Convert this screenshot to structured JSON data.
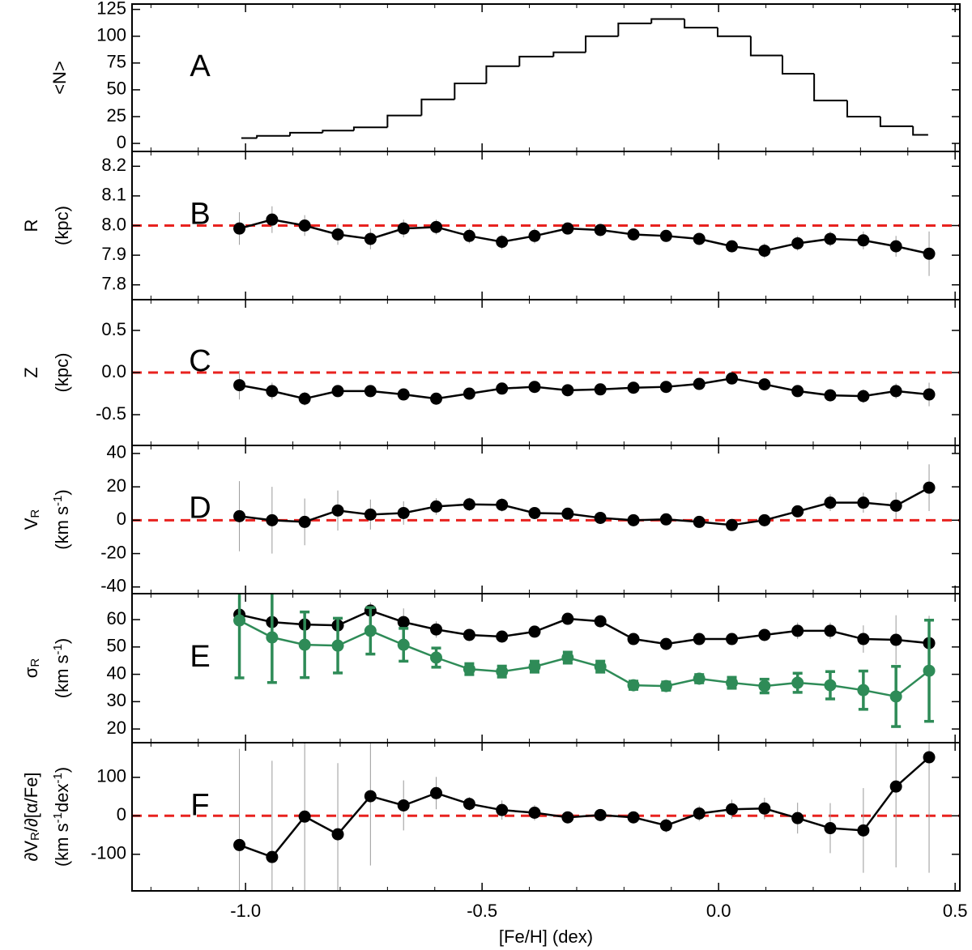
{
  "x_axis": {
    "xlabel": "[Fe/H] (dex)",
    "xlim": [
      -1.24,
      0.51
    ],
    "xticks": [
      {
        "value": -1,
        "label": "-1.0"
      },
      -0.5,
      {
        "value": 0,
        "label": "0.0"
      },
      0.5
    ],
    "xminorticks": [
      -1.2,
      -1.1,
      -0.9,
      -0.8,
      -0.7,
      -0.6,
      -0.4,
      -0.3,
      -0.2,
      -0.1,
      0.1,
      0.2,
      0.3,
      0.4
    ]
  },
  "chart_data": [
    {
      "type": "histogram",
      "panel_label": "A",
      "ylabel": [
        [
          {
            "t": "<N>"
          }
        ]
      ],
      "ylim": [
        -7.5,
        130
      ],
      "yticks": [
        0,
        25,
        50,
        75,
        100,
        125
      ],
      "color": "#000000",
      "bins": [
        -1.009,
        -0.976,
        -0.906,
        -0.837,
        -0.771,
        -0.7,
        -0.628,
        -0.558,
        -0.491,
        -0.421,
        -0.349,
        -0.281,
        -0.212,
        -0.142,
        -0.072,
        -0.002,
        0.068,
        0.135,
        0.202,
        0.272,
        0.342,
        0.411,
        0.443
      ],
      "values": [
        5,
        7,
        10,
        12,
        15,
        26,
        41,
        56,
        72,
        81,
        85,
        100,
        112,
        116,
        108,
        100,
        82,
        65,
        40,
        25,
        16,
        8
      ]
    },
    {
      "type": "line",
      "panel_label": "B",
      "ylabel": [
        [
          {
            "t": "R"
          }
        ],
        [
          {
            "t": "(kpc)"
          }
        ]
      ],
      "ylim": [
        7.75,
        8.25
      ],
      "yticks": [
        7.8,
        7.9,
        {
          "value": 8,
          "label": "8.0"
        },
        8.1,
        8.2
      ],
      "hline": 8.0,
      "hline_color": "#e8221f",
      "x": [
        -1.013,
        -0.944,
        -0.875,
        -0.805,
        -0.736,
        -0.666,
        -0.597,
        -0.527,
        -0.458,
        -0.389,
        -0.319,
        -0.25,
        -0.18,
        -0.111,
        -0.041,
        0.028,
        0.097,
        0.167,
        0.236,
        0.306,
        0.375,
        0.445
      ],
      "series": [
        {
          "color": "#000000",
          "error_color": "#999999",
          "error_width": 1,
          "values": [
            7.99,
            8.02,
            8.0,
            7.97,
            7.955,
            7.99,
            7.995,
            7.965,
            7.945,
            7.965,
            7.99,
            7.985,
            7.97,
            7.965,
            7.955,
            7.93,
            7.915,
            7.94,
            7.955,
            7.95,
            7.93,
            7.905
          ],
          "errors": [
            0.055,
            0.045,
            0.035,
            0.035,
            0.035,
            0.03,
            0.025,
            0.025,
            0.025,
            0.025,
            0.02,
            0.02,
            0.02,
            0.02,
            0.02,
            0.02,
            0.025,
            0.025,
            0.025,
            0.03,
            0.035,
            0.075
          ]
        }
      ]
    },
    {
      "type": "line",
      "panel_label": "C",
      "ylabel": [
        [
          {
            "t": "Z"
          }
        ],
        [
          {
            "t": "(kpc)"
          }
        ]
      ],
      "ylim": [
        -0.865,
        0.865
      ],
      "yticks": [
        -0.5,
        {
          "value": 0,
          "label": "0.0"
        },
        0.5
      ],
      "hline": 0,
      "hline_color": "#e8221f",
      "x": [
        -1.013,
        -0.944,
        -0.875,
        -0.805,
        -0.736,
        -0.666,
        -0.597,
        -0.527,
        -0.458,
        -0.389,
        -0.319,
        -0.25,
        -0.18,
        -0.111,
        -0.041,
        0.028,
        0.097,
        0.167,
        0.236,
        0.306,
        0.375,
        0.445
      ],
      "series": [
        {
          "color": "#000000",
          "error_color": "#999999",
          "error_width": 1,
          "values": [
            -0.15,
            -0.22,
            -0.31,
            -0.22,
            -0.22,
            -0.26,
            -0.31,
            -0.25,
            -0.19,
            -0.17,
            -0.21,
            -0.2,
            -0.18,
            -0.17,
            -0.135,
            -0.07,
            -0.14,
            -0.22,
            -0.27,
            -0.28,
            -0.22,
            -0.26
          ],
          "errors": [
            0.17,
            0.1,
            0.08,
            0.07,
            0.07,
            0.06,
            0.06,
            0.06,
            0.05,
            0.05,
            0.05,
            0.05,
            0.05,
            0.05,
            0.05,
            0.05,
            0.06,
            0.06,
            0.07,
            0.08,
            0.09,
            0.14
          ]
        }
      ]
    },
    {
      "type": "line",
      "panel_label": "D",
      "ylabel": [
        [
          {
            "t": "V"
          },
          {
            "sub": "R"
          }
        ],
        [
          {
            "t": "(km s"
          },
          {
            "sup": "-1"
          },
          {
            "t": ")"
          }
        ]
      ],
      "ylim": [
        -44,
        44.8
      ],
      "yticks": [
        -40,
        -20,
        0,
        20,
        40
      ],
      "hline": 0,
      "hline_color": "#e8221f",
      "x": [
        -1.013,
        -0.944,
        -0.875,
        -0.805,
        -0.736,
        -0.666,
        -0.597,
        -0.527,
        -0.458,
        -0.389,
        -0.319,
        -0.25,
        -0.18,
        -0.111,
        -0.041,
        0.028,
        0.097,
        0.167,
        0.236,
        0.306,
        0.375,
        0.445
      ],
      "series": [
        {
          "color": "#000000",
          "error_color": "#999999",
          "error_width": 1,
          "values": [
            2.4,
            0,
            -1,
            5.8,
            3.4,
            4.3,
            8.2,
            9.5,
            9.2,
            4.3,
            3.9,
            1.4,
            0,
            0.5,
            -1,
            -2.9,
            0,
            5.3,
            10.5,
            10.5,
            8.7,
            19.5
          ],
          "errors": [
            21,
            20,
            14,
            12,
            9,
            7,
            5,
            4,
            4,
            3,
            3,
            3,
            3,
            3,
            3,
            3,
            3,
            3,
            5,
            6,
            8,
            14
          ]
        }
      ]
    },
    {
      "type": "line",
      "panel_label": "E",
      "ylabel": [
        [
          {
            "t": "σ"
          },
          {
            "sub": "R"
          }
        ],
        [
          {
            "t": "(km s"
          },
          {
            "sup": "-1"
          },
          {
            "t": ")"
          }
        ]
      ],
      "ylim": [
        15,
        69.5
      ],
      "yticks": [
        20,
        30,
        40,
        50,
        60
      ],
      "x": [
        -1.013,
        -0.944,
        -0.875,
        -0.805,
        -0.736,
        -0.666,
        -0.597,
        -0.527,
        -0.458,
        -0.389,
        -0.319,
        -0.25,
        -0.18,
        -0.111,
        -0.041,
        0.028,
        0.097,
        0.167,
        0.236,
        0.306,
        0.375,
        0.445
      ],
      "series": [
        {
          "color": "#000000",
          "error_color": "#999999",
          "error_width": 1,
          "values": [
            61.8,
            59.1,
            58.2,
            57.9,
            63.3,
            59.1,
            56.4,
            54.4,
            53.8,
            55.6,
            60.3,
            59.4,
            52.9,
            51.1,
            52.9,
            52.9,
            54.4,
            55.9,
            55.9,
            52.9,
            52.6,
            51.4
          ],
          "errors": [
            6,
            5,
            3,
            3,
            3,
            5,
            3,
            2,
            2,
            2,
            2,
            2,
            2,
            2,
            2,
            2,
            2,
            3,
            3,
            5,
            9,
            10
          ]
        },
        {
          "color": "#2e8b57",
          "error_color": "#2e8b57",
          "error_width": 3.5,
          "values": [
            59.7,
            53.5,
            50.8,
            50.5,
            55.9,
            50.8,
            46.1,
            41.9,
            41.0,
            42.8,
            46.1,
            42.8,
            36.0,
            35.7,
            38.4,
            36.9,
            35.7,
            36.9,
            36.0,
            34.2,
            31.9,
            41.3
          ],
          "errors": [
            21,
            16.5,
            12,
            10,
            8.5,
            6,
            3.5,
            2,
            2,
            2,
            2,
            2,
            1.5,
            1.5,
            1.5,
            2,
            2.5,
            3.5,
            5,
            7,
            11,
            18.5
          ]
        }
      ]
    },
    {
      "type": "line",
      "panel_label": "F",
      "ylabel": [
        [
          {
            "t": "∂V"
          },
          {
            "sub": "R"
          },
          {
            "t": "/∂[α/Fe]"
          }
        ],
        [
          {
            "t": "(km s"
          },
          {
            "sup": "-1"
          },
          {
            "t": "dex"
          },
          {
            "sup": "-1"
          },
          {
            "t": ")"
          }
        ]
      ],
      "ylim": [
        -195,
        190
      ],
      "yticks": [
        -100,
        0,
        100
      ],
      "hline": 0,
      "hline_color": "#e8221f",
      "x": [
        -1.013,
        -0.944,
        -0.875,
        -0.805,
        -0.736,
        -0.666,
        -0.597,
        -0.527,
        -0.458,
        -0.389,
        -0.319,
        -0.25,
        -0.18,
        -0.111,
        -0.041,
        0.028,
        0.097,
        0.167,
        0.236,
        0.306,
        0.375,
        0.445
      ],
      "series": [
        {
          "color": "#000000",
          "error_color": "#999999",
          "error_width": 1,
          "values": [
            -76,
            -107,
            -2,
            -48,
            51,
            27,
            59,
            31,
            15,
            8,
            -4,
            2,
            -4,
            -25,
            6,
            17,
            19,
            -6,
            -32,
            -38,
            76,
            152
          ],
          "errors": [
            250,
            250,
            200,
            185,
            180,
            65,
            42,
            18,
            25,
            20,
            15,
            15,
            15,
            18,
            20,
            25,
            28,
            40,
            65,
            110,
            210,
            300
          ]
        }
      ]
    }
  ]
}
